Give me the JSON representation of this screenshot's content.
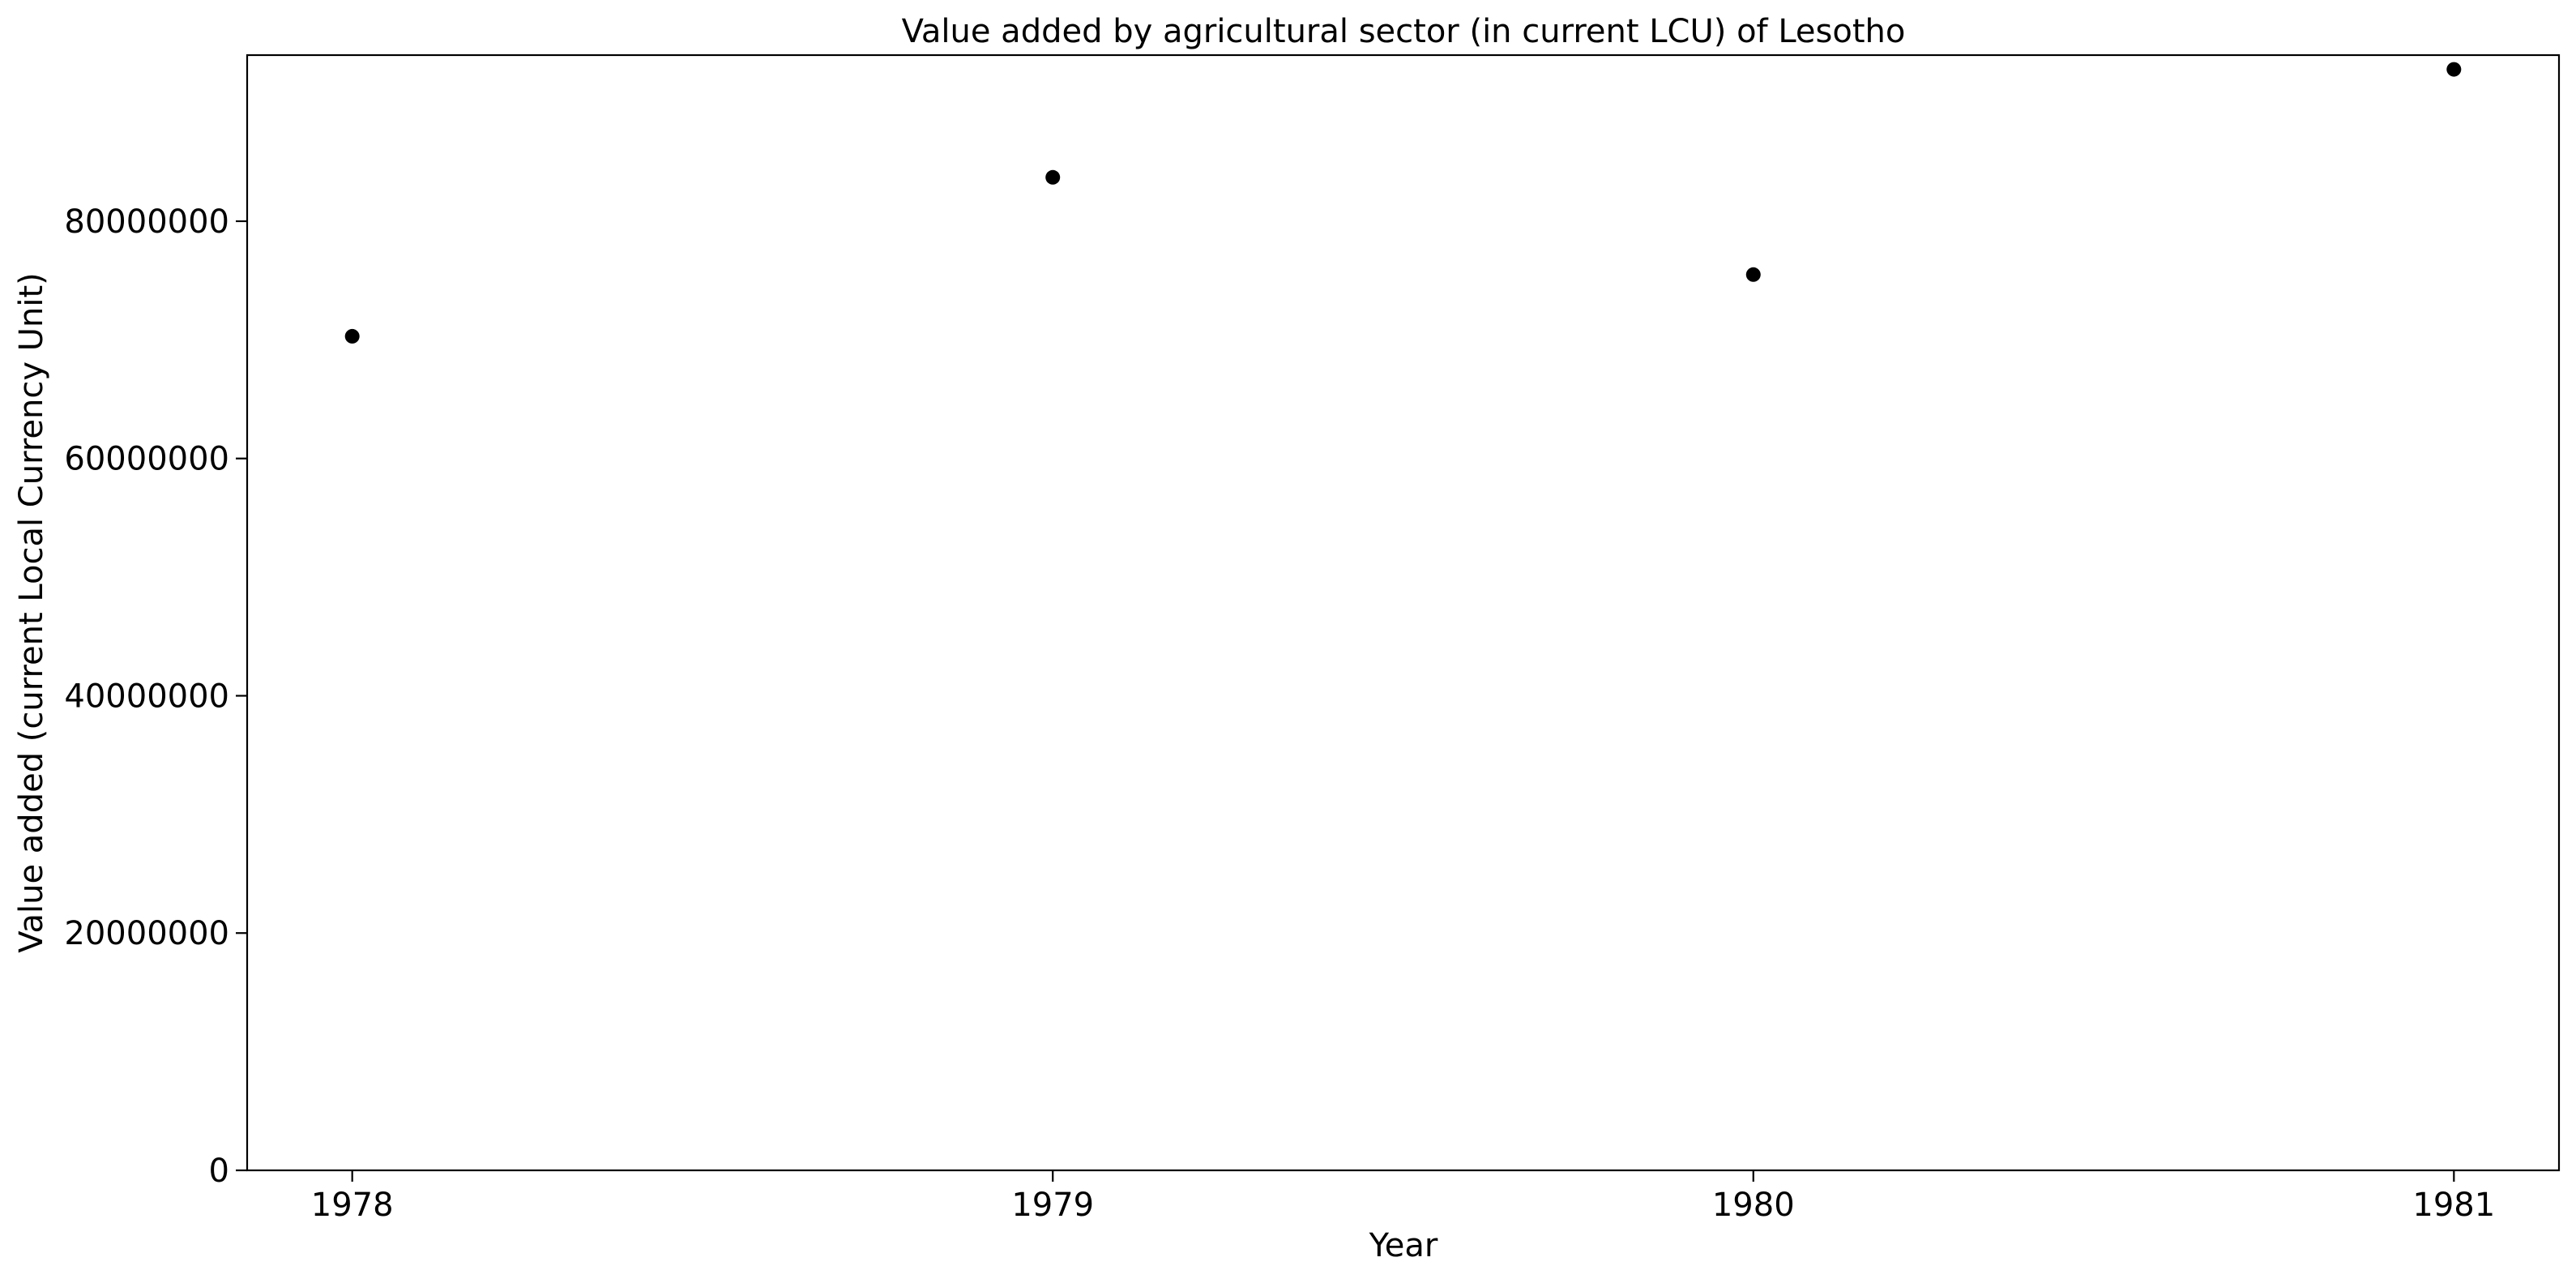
{
  "chart_data": {
    "type": "scatter",
    "title": "Value added by agricultural sector (in current LCU) of Lesotho",
    "xlabel": "Year",
    "ylabel": "Value added (current Local Currency Unit)",
    "x": [
      1978,
      1979,
      1980,
      1981
    ],
    "y": [
      70300000,
      83700000,
      75500000,
      92800000
    ],
    "x_ticks": [
      "1978",
      "1979",
      "1980",
      "1981"
    ],
    "y_ticks": [
      0,
      20000000,
      40000000,
      60000000,
      80000000
    ],
    "y_tick_labels": [
      "0",
      "20000000",
      "40000000",
      "60000000",
      "80000000"
    ],
    "xlim": [
      1977.85,
      1981.15
    ],
    "ylim": [
      0,
      94000000
    ],
    "grid": false,
    "legend": "none",
    "marker_color": "#000000"
  }
}
